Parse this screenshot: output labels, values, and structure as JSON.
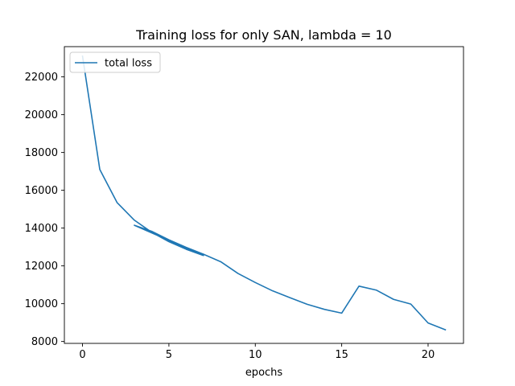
{
  "chart_data": {
    "type": "line",
    "title": "Training loss for only SAN, lambda = 10",
    "xlabel": "epochs",
    "ylabel": "",
    "xlim": [
      -1.05,
      22.05
    ],
    "ylim": [
      7900,
      23600
    ],
    "x_ticks": [
      0,
      5,
      10,
      15,
      20
    ],
    "y_ticks": [
      8000,
      10000,
      12000,
      14000,
      16000,
      18000,
      20000,
      22000
    ],
    "grid": false,
    "legend_position": "top-left",
    "series": [
      {
        "name": "total loss",
        "color": "#1f77b4",
        "x": [
          0,
          1,
          2,
          3,
          4,
          5,
          6,
          7,
          3,
          4,
          5,
          6,
          7,
          8,
          9,
          10,
          11,
          12,
          13,
          14,
          15,
          16,
          17,
          18,
          19,
          20,
          21
        ],
        "y": [
          23100,
          17100,
          15350,
          14420,
          13780,
          13280,
          12880,
          12550,
          14150,
          13830,
          13380,
          12980,
          12620,
          12220,
          11600,
          11120,
          10680,
          10320,
          9970,
          9700,
          9500,
          10930,
          10720,
          10230,
          9980,
          8980,
          8620
        ]
      }
    ]
  }
}
